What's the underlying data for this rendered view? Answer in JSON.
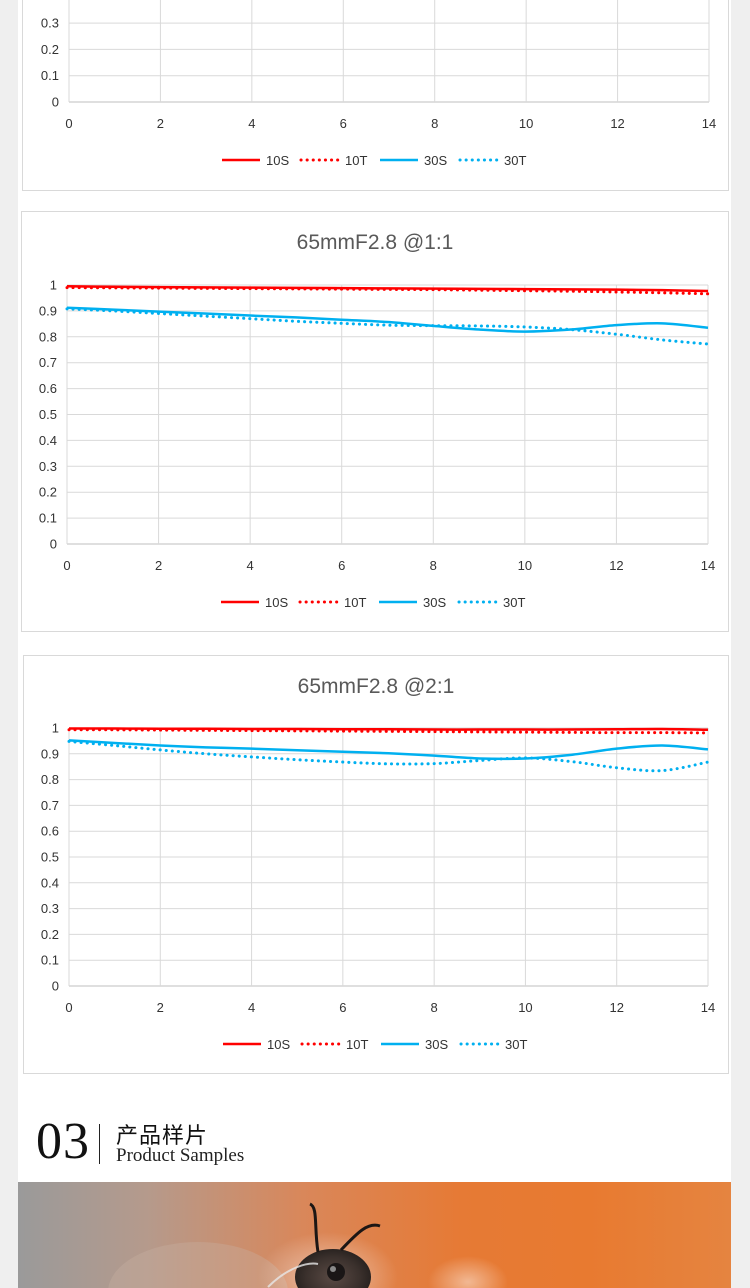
{
  "colors": {
    "s10": "#ff0000",
    "s30": "#00b0f0",
    "grid": "#d9d9d9",
    "axis": "#bfbfbf"
  },
  "legend": [
    "10S",
    "10T",
    "30S",
    "30T"
  ],
  "chart_data": [
    {
      "type": "line",
      "title": "",
      "xlabel": "",
      "ylabel": "",
      "xlim": [
        0,
        14
      ],
      "ylim": [
        0,
        1
      ],
      "x_ticks": [
        "0",
        "2",
        "4",
        "6",
        "8",
        "10",
        "12",
        "14"
      ],
      "y_ticks": [
        "0",
        "0.1",
        "0.2",
        "0.3"
      ],
      "partial": true,
      "grid": true,
      "legend_position": "bottom",
      "series": []
    },
    {
      "type": "line",
      "title": "65mmF2.8 @1:1",
      "xlabel": "",
      "ylabel": "",
      "xlim": [
        0,
        14
      ],
      "ylim": [
        0,
        1
      ],
      "x_ticks": [
        "0",
        "2",
        "4",
        "6",
        "8",
        "10",
        "12",
        "14"
      ],
      "y_ticks": [
        "0",
        "0.1",
        "0.2",
        "0.3",
        "0.4",
        "0.5",
        "0.6",
        "0.7",
        "0.8",
        "0.9",
        "1"
      ],
      "grid": true,
      "legend_position": "bottom",
      "series": [
        {
          "name": "10S",
          "style": "solid",
          "x": [
            0,
            1,
            2,
            3,
            4,
            5,
            6,
            7,
            8,
            9,
            10,
            11,
            12,
            13,
            14
          ],
          "y": [
            0.995,
            0.993,
            0.992,
            0.991,
            0.99,
            0.989,
            0.988,
            0.987,
            0.986,
            0.985,
            0.984,
            0.983,
            0.982,
            0.98,
            0.977
          ]
        },
        {
          "name": "10T",
          "style": "dotted",
          "x": [
            0,
            1,
            2,
            3,
            4,
            5,
            6,
            7,
            8,
            9,
            10,
            11,
            12,
            13,
            14
          ],
          "y": [
            0.99,
            0.989,
            0.988,
            0.987,
            0.986,
            0.985,
            0.984,
            0.983,
            0.982,
            0.98,
            0.978,
            0.976,
            0.973,
            0.97,
            0.966
          ]
        },
        {
          "name": "30S",
          "style": "solid",
          "x": [
            0,
            1,
            2,
            3,
            4,
            5,
            6,
            7,
            8,
            9,
            10,
            11,
            12,
            13,
            14
          ],
          "y": [
            0.912,
            0.905,
            0.897,
            0.89,
            0.882,
            0.875,
            0.866,
            0.857,
            0.842,
            0.828,
            0.82,
            0.828,
            0.845,
            0.852,
            0.835
          ]
        },
        {
          "name": "30T",
          "style": "dotted",
          "x": [
            0,
            1,
            2,
            3,
            4,
            5,
            6,
            7,
            8,
            9,
            10,
            11,
            12,
            13,
            14
          ],
          "y": [
            0.908,
            0.9,
            0.89,
            0.88,
            0.87,
            0.86,
            0.852,
            0.845,
            0.843,
            0.842,
            0.838,
            0.828,
            0.81,
            0.788,
            0.772
          ]
        }
      ]
    },
    {
      "type": "line",
      "title": "65mmF2.8 @2:1",
      "xlabel": "",
      "ylabel": "",
      "xlim": [
        0,
        14
      ],
      "ylim": [
        0,
        1
      ],
      "x_ticks": [
        "0",
        "2",
        "4",
        "6",
        "8",
        "10",
        "12",
        "14"
      ],
      "y_ticks": [
        "0",
        "0.1",
        "0.2",
        "0.3",
        "0.4",
        "0.5",
        "0.6",
        "0.7",
        "0.8",
        "0.9",
        "1"
      ],
      "grid": true,
      "legend_position": "bottom",
      "series": [
        {
          "name": "10S",
          "style": "solid",
          "x": [
            0,
            1,
            2,
            3,
            4,
            5,
            6,
            7,
            8,
            9,
            10,
            11,
            12,
            13,
            14
          ],
          "y": [
            0.998,
            0.998,
            0.997,
            0.997,
            0.996,
            0.996,
            0.995,
            0.995,
            0.994,
            0.994,
            0.994,
            0.994,
            0.995,
            0.996,
            0.993
          ]
        },
        {
          "name": "10T",
          "style": "dotted",
          "x": [
            0,
            1,
            2,
            3,
            4,
            5,
            6,
            7,
            8,
            9,
            10,
            11,
            12,
            13,
            14
          ],
          "y": [
            0.993,
            0.993,
            0.992,
            0.991,
            0.99,
            0.989,
            0.988,
            0.987,
            0.986,
            0.985,
            0.984,
            0.983,
            0.982,
            0.982,
            0.981
          ]
        },
        {
          "name": "30S",
          "style": "solid",
          "x": [
            0,
            1,
            2,
            3,
            4,
            5,
            6,
            7,
            8,
            9,
            10,
            11,
            12,
            13,
            14
          ],
          "y": [
            0.952,
            0.942,
            0.932,
            0.925,
            0.92,
            0.914,
            0.908,
            0.902,
            0.893,
            0.882,
            0.882,
            0.896,
            0.92,
            0.932,
            0.917
          ]
        },
        {
          "name": "30T",
          "style": "dotted",
          "x": [
            0,
            1,
            2,
            3,
            4,
            5,
            6,
            7,
            8,
            9,
            10,
            11,
            12,
            13,
            14
          ],
          "y": [
            0.948,
            0.932,
            0.915,
            0.9,
            0.888,
            0.877,
            0.868,
            0.861,
            0.862,
            0.874,
            0.884,
            0.87,
            0.846,
            0.835,
            0.868
          ]
        }
      ]
    }
  ],
  "section": {
    "number": "03",
    "title_cn": "产品样片",
    "title_en": "Product Samples"
  }
}
